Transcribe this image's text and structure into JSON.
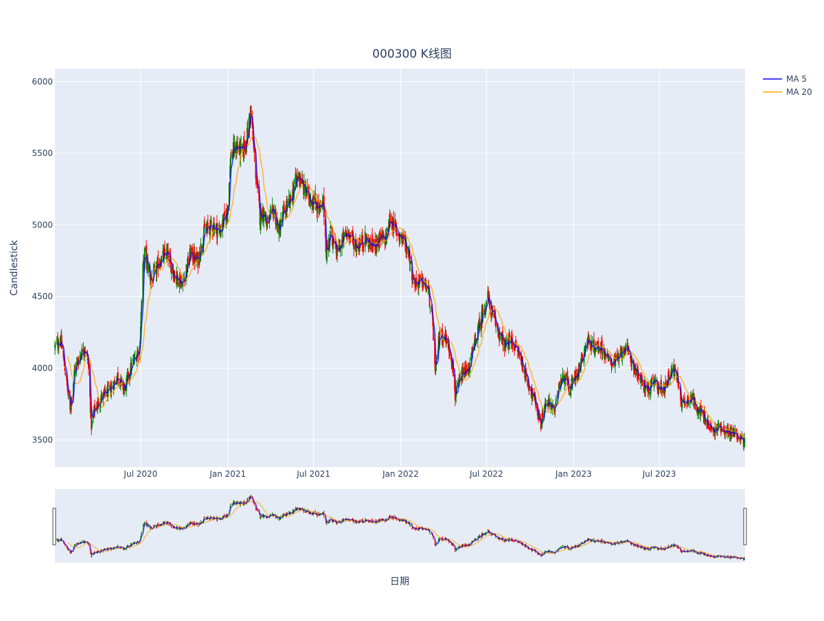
{
  "chart_data": {
    "type": "candlestick",
    "title": "000300 K线图",
    "xlabel": "日期",
    "ylabel": "Candlestick",
    "ylim": [
      3310,
      6090
    ],
    "xlim": [
      "2020-01-02",
      "2023-12-29"
    ],
    "y_ticks": [
      3500,
      4000,
      4500,
      5000,
      5500,
      6000
    ],
    "x_ticks": [
      {
        "date": "2020-07-01",
        "label": "Jul 2020"
      },
      {
        "date": "2021-01-01",
        "label": "Jan 2021"
      },
      {
        "date": "2021-07-01",
        "label": "Jul 2021"
      },
      {
        "date": "2022-01-01",
        "label": "Jan 2022"
      },
      {
        "date": "2022-07-01",
        "label": "Jul 2022"
      },
      {
        "date": "2023-01-01",
        "label": "Jan 2023"
      },
      {
        "date": "2023-07-01",
        "label": "Jul 2023"
      }
    ],
    "grid": true,
    "legend_position": "top-right",
    "candle_colors": {
      "increasing": "#008000",
      "decreasing": "#ff0000"
    },
    "range_slider": true,
    "series": [
      {
        "name": "MA 5",
        "color": "#0000ff",
        "type": "line"
      },
      {
        "name": "MA 20",
        "color": "#ffa500",
        "type": "line"
      }
    ],
    "close_path": [
      [
        "2020-01-02",
        4150
      ],
      [
        "2020-01-14",
        4200
      ],
      [
        "2020-01-23",
        4000
      ],
      [
        "2020-02-03",
        3700
      ],
      [
        "2020-02-13",
        4000
      ],
      [
        "2020-03-04",
        4150
      ],
      [
        "2020-03-12",
        4050
      ],
      [
        "2020-03-19",
        3600
      ],
      [
        "2020-03-24",
        3700
      ],
      [
        "2020-04-10",
        3800
      ],
      [
        "2020-04-29",
        3850
      ],
      [
        "2020-05-13",
        3950
      ],
      [
        "2020-05-27",
        3850
      ],
      [
        "2020-06-10",
        4000
      ],
      [
        "2020-06-29",
        4150
      ],
      [
        "2020-07-06",
        4700
      ],
      [
        "2020-07-10",
        4800
      ],
      [
        "2020-07-24",
        4600
      ],
      [
        "2020-08-10",
        4750
      ],
      [
        "2020-08-26",
        4800
      ],
      [
        "2020-09-10",
        4650
      ],
      [
        "2020-09-28",
        4600
      ],
      [
        "2020-10-14",
        4800
      ],
      [
        "2020-10-30",
        4750
      ],
      [
        "2020-11-12",
        4950
      ],
      [
        "2020-12-01",
        5000
      ],
      [
        "2020-12-15",
        4950
      ],
      [
        "2020-12-31",
        5100
      ],
      [
        "2021-01-08",
        5500
      ],
      [
        "2021-01-20",
        5550
      ],
      [
        "2021-02-01",
        5500
      ],
      [
        "2021-02-10",
        5600
      ],
      [
        "2021-02-18",
        5800
      ],
      [
        "2021-02-24",
        5550
      ],
      [
        "2021-03-04",
        5250
      ],
      [
        "2021-03-10",
        5050
      ],
      [
        "2021-03-17",
        5100
      ],
      [
        "2021-03-24",
        5000
      ],
      [
        "2021-04-08",
        5100
      ],
      [
        "2021-04-19",
        4950
      ],
      [
        "2021-04-30",
        5100
      ],
      [
        "2021-05-12",
        5150
      ],
      [
        "2021-05-24",
        5300
      ],
      [
        "2021-06-01",
        5350
      ],
      [
        "2021-06-10",
        5250
      ],
      [
        "2021-06-21",
        5200
      ],
      [
        "2021-07-05",
        5150
      ],
      [
        "2021-07-16",
        5100
      ],
      [
        "2021-07-22",
        5150
      ],
      [
        "2021-07-28",
        4800
      ],
      [
        "2021-08-06",
        4950
      ],
      [
        "2021-08-19",
        4800
      ],
      [
        "2021-09-01",
        4900
      ],
      [
        "2021-09-13",
        4950
      ],
      [
        "2021-09-29",
        4850
      ],
      [
        "2021-10-18",
        4900
      ],
      [
        "2021-11-03",
        4850
      ],
      [
        "2021-11-17",
        4900
      ],
      [
        "2021-12-01",
        4900
      ],
      [
        "2021-12-10",
        5050
      ],
      [
        "2021-12-23",
        4950
      ],
      [
        "2022-01-07",
        4900
      ],
      [
        "2022-01-19",
        4800
      ],
      [
        "2022-01-28",
        4600
      ],
      [
        "2022-02-16",
        4600
      ],
      [
        "2022-02-28",
        4550
      ],
      [
        "2022-03-10",
        4300
      ],
      [
        "2022-03-15",
        3950
      ],
      [
        "2022-03-24",
        4250
      ],
      [
        "2022-04-08",
        4200
      ],
      [
        "2022-04-20",
        4050
      ],
      [
        "2022-04-26",
        3800
      ],
      [
        "2022-05-10",
        3950
      ],
      [
        "2022-05-25",
        4000
      ],
      [
        "2022-06-08",
        4200
      ],
      [
        "2022-06-20",
        4350
      ],
      [
        "2022-07-04",
        4500
      ],
      [
        "2022-07-11",
        4400
      ],
      [
        "2022-07-27",
        4250
      ],
      [
        "2022-08-10",
        4150
      ],
      [
        "2022-08-22",
        4200
      ],
      [
        "2022-09-08",
        4100
      ],
      [
        "2022-09-27",
        3900
      ],
      [
        "2022-10-13",
        3750
      ],
      [
        "2022-10-24",
        3600
      ],
      [
        "2022-11-01",
        3750
      ],
      [
        "2022-11-10",
        3750
      ],
      [
        "2022-11-23",
        3700
      ],
      [
        "2022-12-01",
        3900
      ],
      [
        "2022-12-15",
        3950
      ],
      [
        "2022-12-23",
        3850
      ],
      [
        "2023-01-12",
        4000
      ],
      [
        "2023-01-30",
        4200
      ],
      [
        "2023-02-10",
        4150
      ],
      [
        "2023-03-01",
        4150
      ],
      [
        "2023-03-16",
        4050
      ],
      [
        "2023-04-04",
        4050
      ],
      [
        "2023-04-18",
        4150
      ],
      [
        "2023-05-04",
        4050
      ],
      [
        "2023-05-24",
        3900
      ],
      [
        "2023-06-08",
        3850
      ],
      [
        "2023-06-19",
        3900
      ],
      [
        "2023-07-10",
        3850
      ],
      [
        "2023-07-28",
        4000
      ],
      [
        "2023-08-07",
        3950
      ],
      [
        "2023-08-18",
        3750
      ],
      [
        "2023-09-05",
        3800
      ],
      [
        "2023-09-25",
        3700
      ],
      [
        "2023-10-23",
        3550
      ],
      [
        "2023-11-06",
        3600
      ],
      [
        "2023-11-23",
        3550
      ],
      [
        "2023-12-08",
        3550
      ],
      [
        "2023-12-29",
        3480
      ]
    ]
  },
  "legend": {
    "items": [
      {
        "label": "MA 5",
        "color": "#0000ff"
      },
      {
        "label": "MA 20",
        "color": "#ffa500"
      }
    ]
  }
}
